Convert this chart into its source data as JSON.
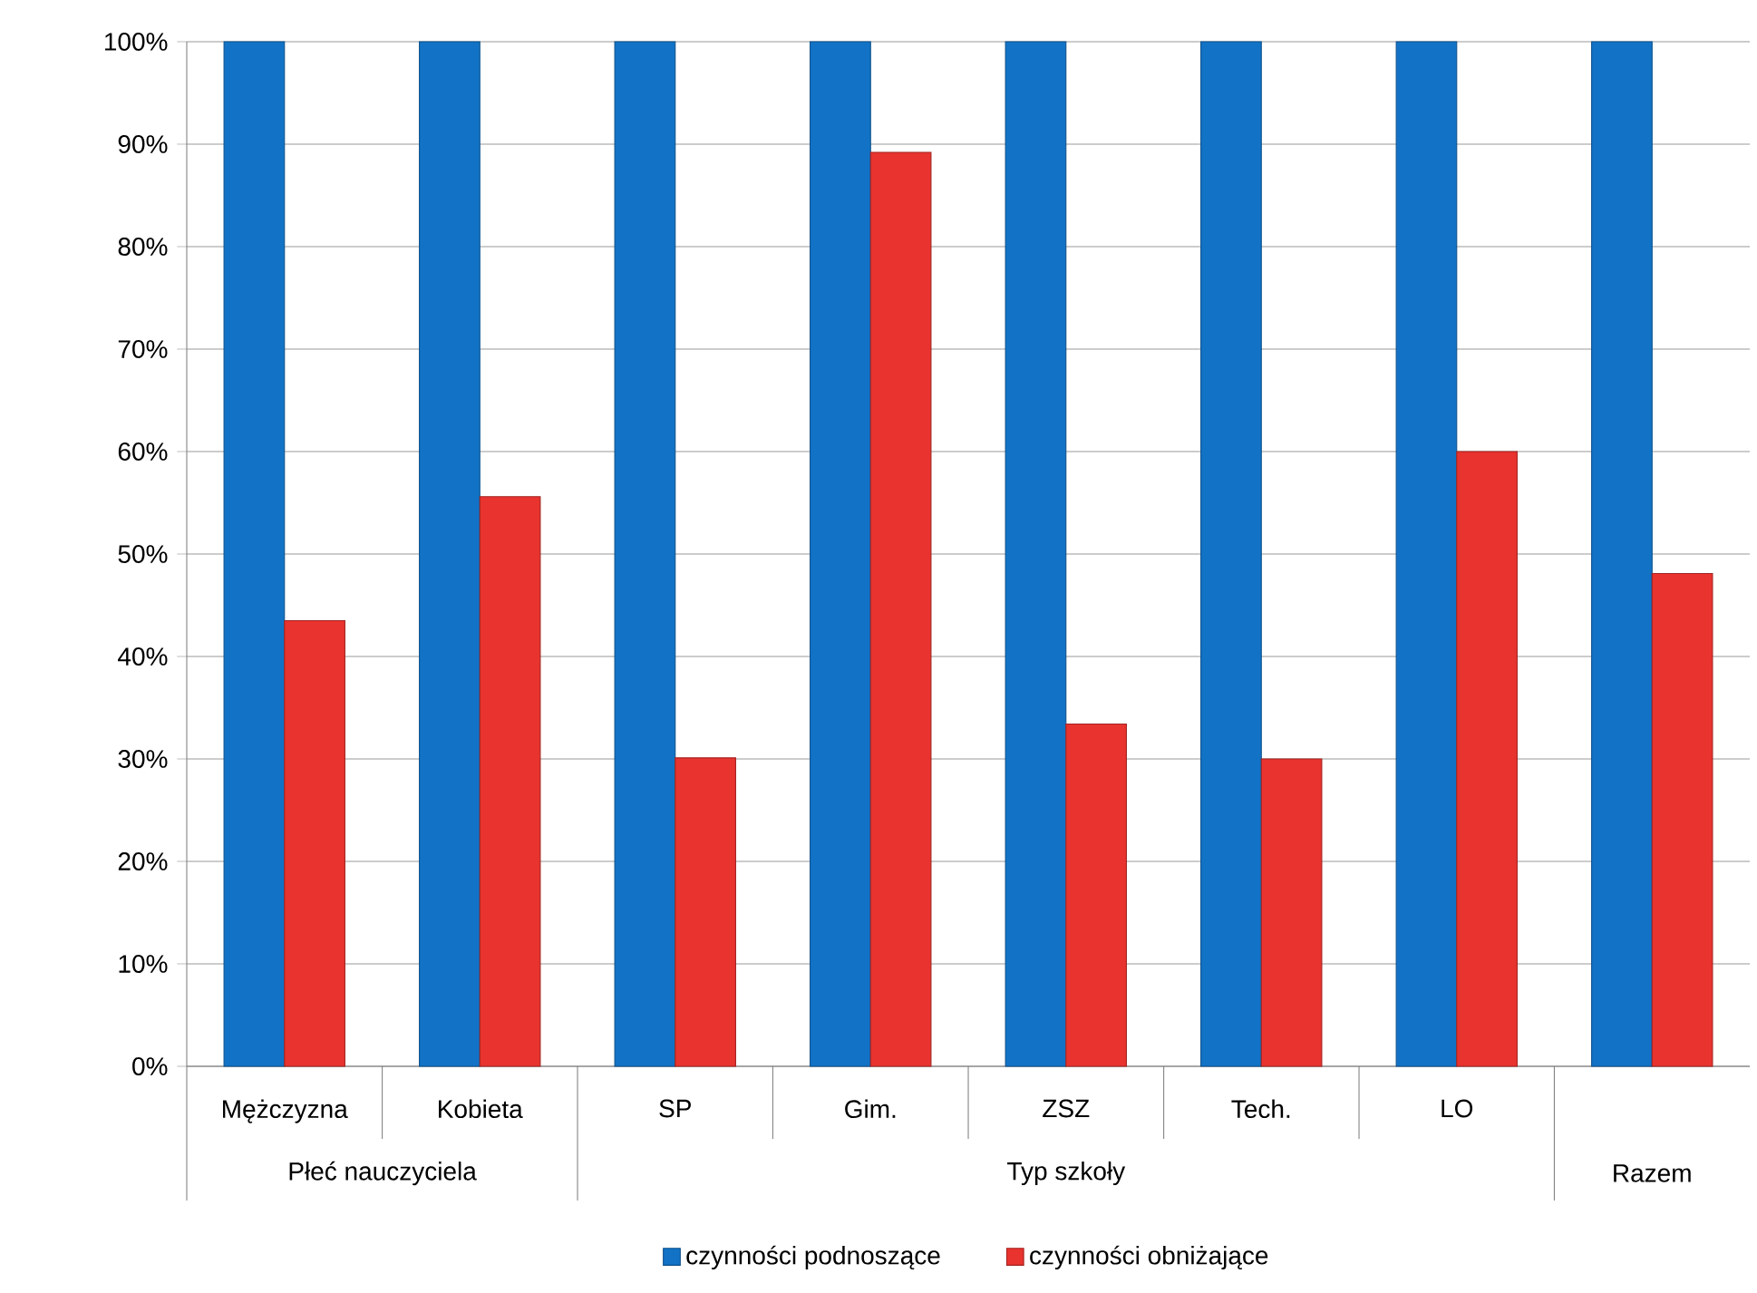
{
  "chart_data": {
    "type": "bar",
    "categories": [
      "Mężczyzna",
      "Kobieta",
      "SP",
      "Gim.",
      "ZSZ",
      "Tech.",
      "LO",
      null
    ],
    "series": [
      {
        "name": "czynności podnoszące",
        "color": "#1273c6",
        "values": [
          100,
          100,
          100,
          100,
          100,
          100,
          100,
          100
        ]
      },
      {
        "name": "czynności obniżające",
        "color": "#e8332f",
        "values": [
          43.5,
          55.6,
          30.1,
          89.2,
          33.4,
          30,
          60,
          48.1
        ]
      }
    ],
    "ylim": [
      0,
      100
    ],
    "yticks": [
      {
        "value": 0,
        "label": "0%"
      },
      {
        "value": 10,
        "label": "10%"
      },
      {
        "value": 20,
        "label": "20%"
      },
      {
        "value": 30,
        "label": "30%"
      },
      {
        "value": 40,
        "label": "40%"
      },
      {
        "value": 50,
        "label": "50%"
      },
      {
        "value": 60,
        "label": "60%"
      },
      {
        "value": 70,
        "label": "70%"
      },
      {
        "value": 80,
        "label": "80%"
      },
      {
        "value": 90,
        "label": "90%"
      },
      {
        "value": 100,
        "label": "100%"
      }
    ],
    "grid": "y",
    "legend": "bottom",
    "annotations": [
      "Płeć nauczyciela",
      "Typ szkoły",
      "Razem"
    ]
  }
}
